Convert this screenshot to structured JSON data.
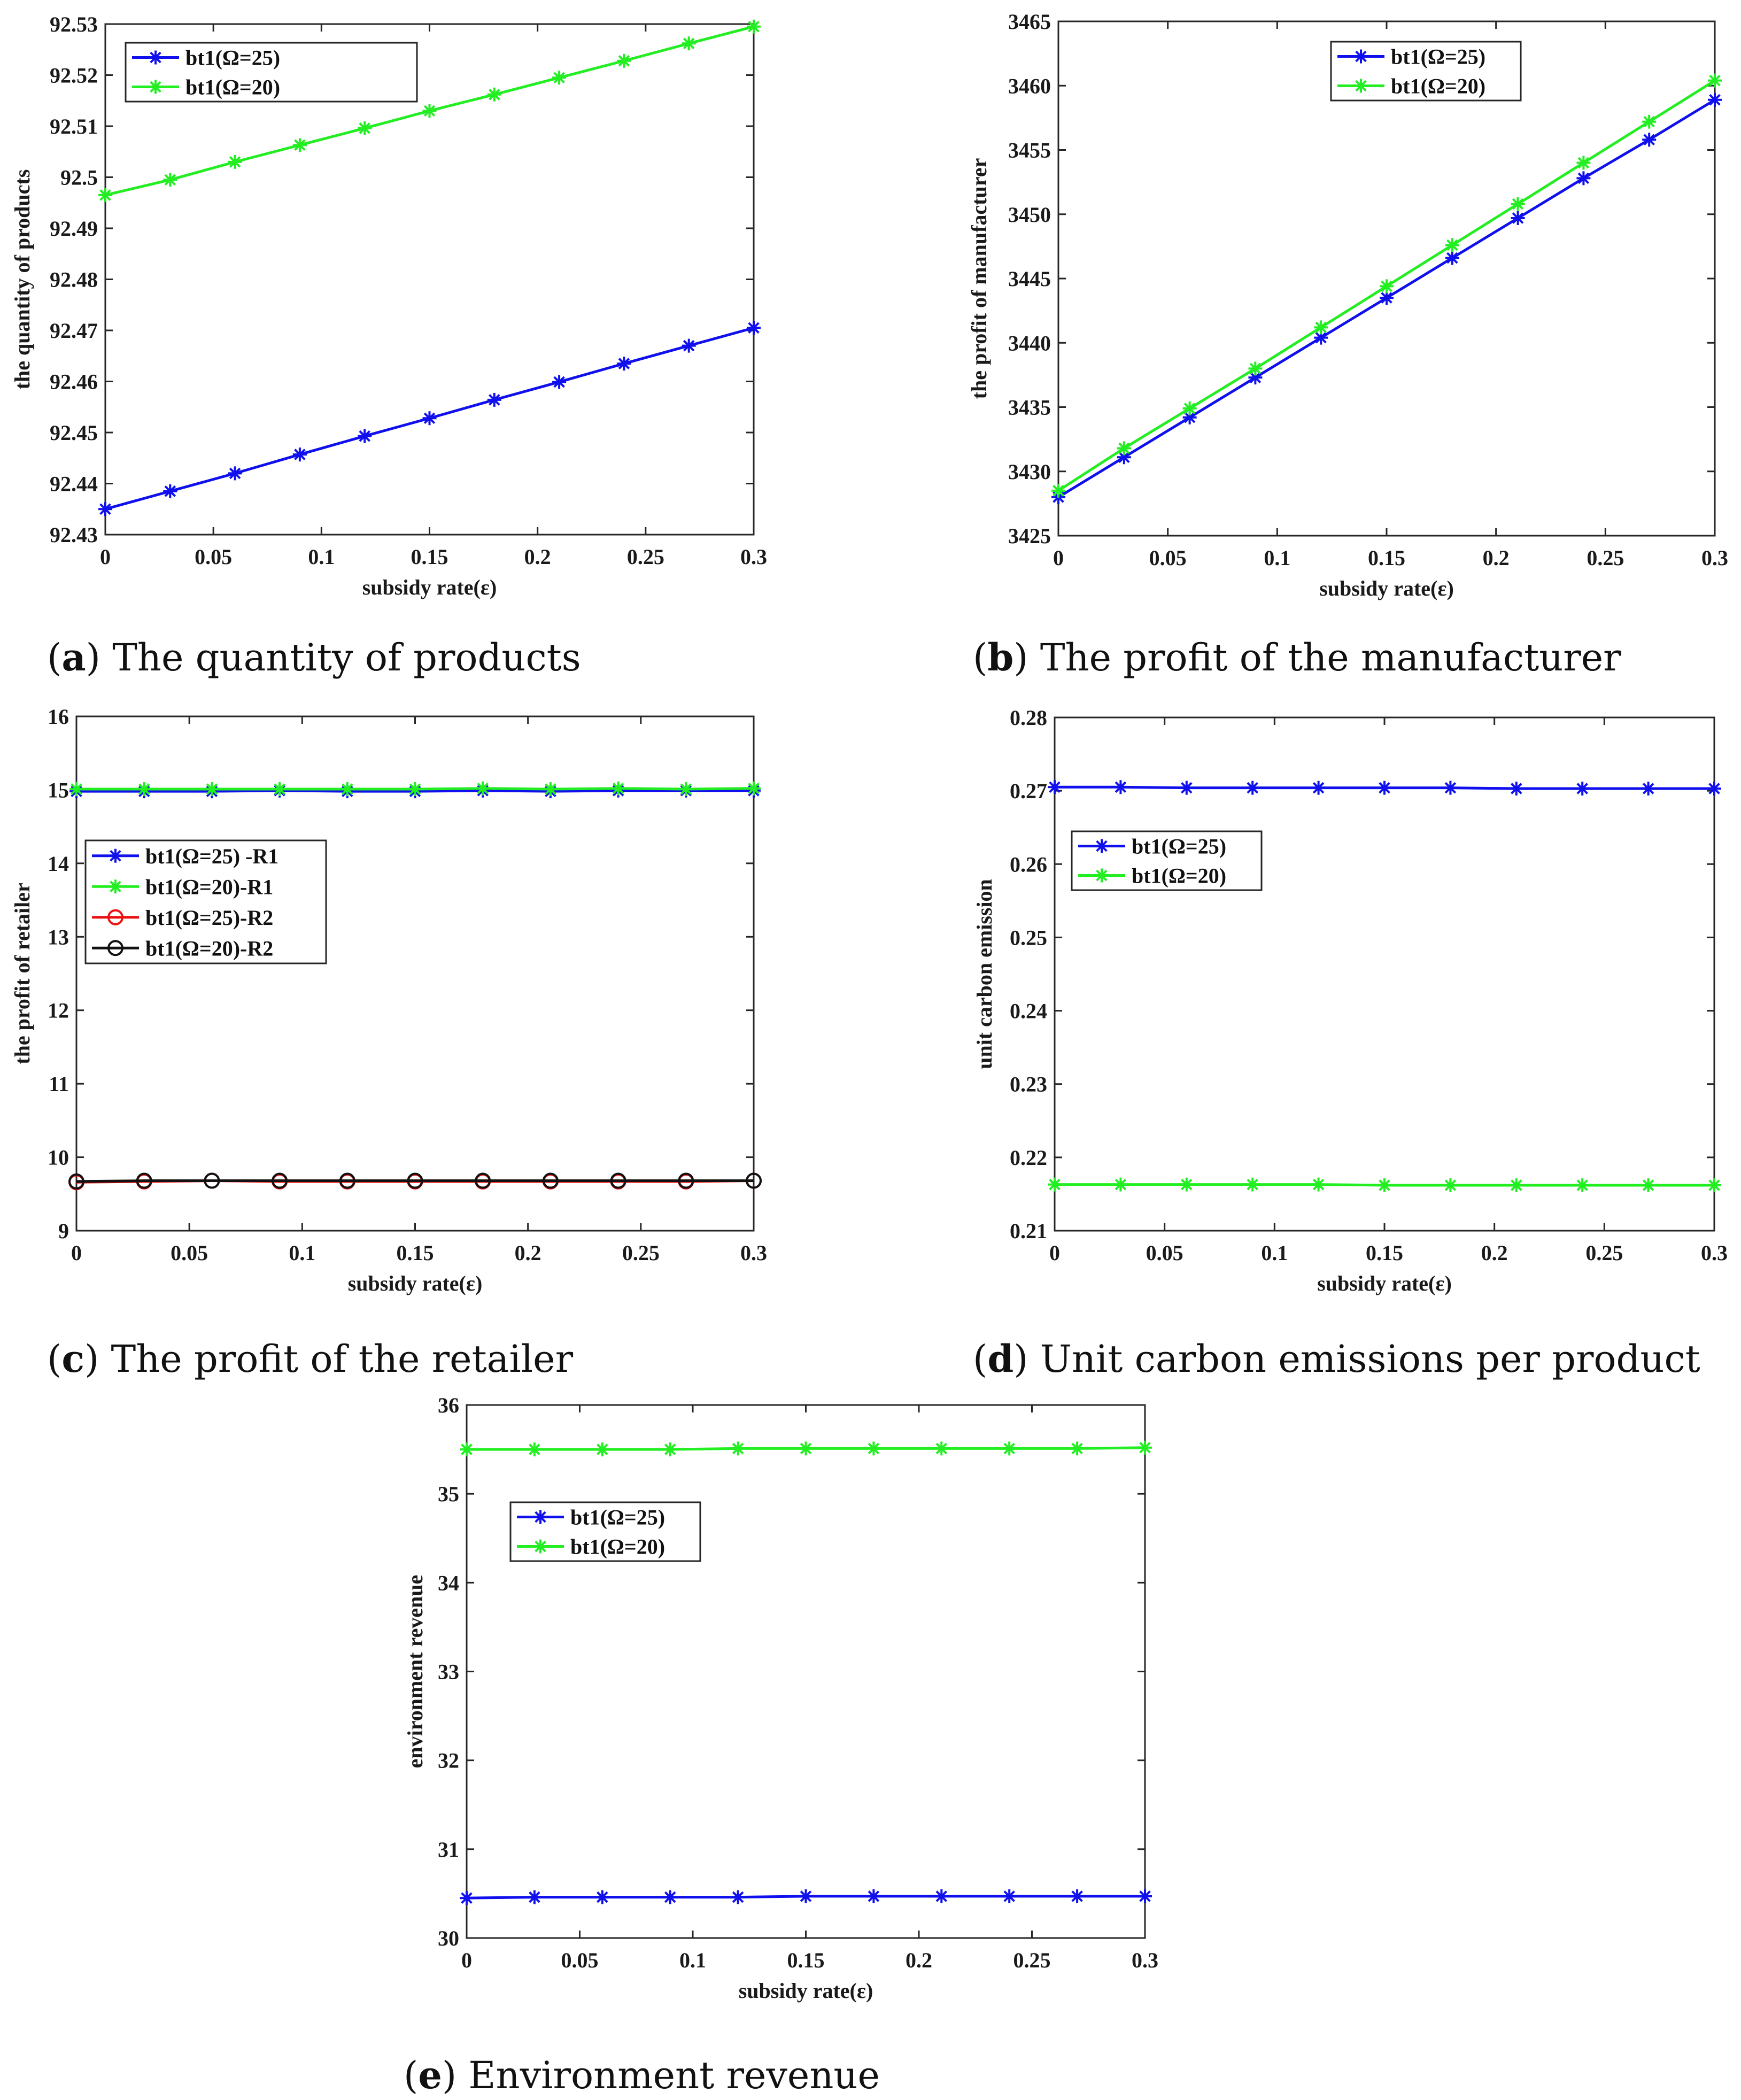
{
  "chart_data": [
    {
      "type": "line",
      "caption_letter": "a",
      "caption_text": "The quantity of products",
      "xlabel": "subsidy rate(ε)",
      "ylabel": "the quantity of products",
      "xlim": [
        0,
        0.3
      ],
      "ylim": [
        92.43,
        92.53
      ],
      "xticks": [
        "0",
        "0.05",
        "0.1",
        "0.15",
        "0.2",
        "0.25",
        "0.3"
      ],
      "yticks": [
        "92.43",
        "92.44",
        "92.45",
        "92.46",
        "92.47",
        "92.48",
        "92.49",
        "92.5",
        "92.51",
        "92.52",
        "92.53"
      ],
      "legend_position": "top-left",
      "x": [
        0,
        0.03,
        0.06,
        0.09,
        0.12,
        0.15,
        0.18,
        0.21,
        0.24,
        0.27,
        0.3
      ],
      "series": [
        {
          "name": "bt1(Ω=25)",
          "color": "#1010ee",
          "marker": "star",
          "values": [
            92.435,
            92.4385,
            92.442,
            92.4457,
            92.4493,
            92.4528,
            92.4564,
            92.4599,
            92.4635,
            92.467,
            92.4705
          ]
        },
        {
          "name": "bt1(Ω=20)",
          "color": "#22ee22",
          "marker": "star",
          "values": [
            92.4965,
            92.4995,
            92.503,
            92.5063,
            92.5096,
            92.513,
            92.5162,
            92.5195,
            92.5228,
            92.5262,
            92.5295
          ]
        }
      ]
    },
    {
      "type": "line",
      "caption_letter": "b",
      "caption_text": "The profit of the manufacturer",
      "xlabel": "subsidy rate(ε)",
      "ylabel": "the profit of manufacturer",
      "xlim": [
        0,
        0.3
      ],
      "ylim": [
        3425,
        3465
      ],
      "xticks": [
        "0",
        "0.05",
        "0.1",
        "0.15",
        "0.2",
        "0.25",
        "0.3"
      ],
      "yticks": [
        "3425",
        "3430",
        "3435",
        "3440",
        "3445",
        "3450",
        "3455",
        "3460",
        "3465"
      ],
      "legend_position": "top-center",
      "x": [
        0,
        0.03,
        0.06,
        0.09,
        0.12,
        0.15,
        0.18,
        0.21,
        0.24,
        0.27,
        0.3
      ],
      "series": [
        {
          "name": "bt1(Ω=25)",
          "color": "#1010ee",
          "marker": "star",
          "values": [
            3428.0,
            3431.1,
            3434.2,
            3437.3,
            3440.4,
            3443.5,
            3446.6,
            3449.7,
            3452.8,
            3455.8,
            3458.9
          ]
        },
        {
          "name": "bt1(Ω=20)",
          "color": "#22ee22",
          "marker": "star",
          "values": [
            3428.5,
            3431.8,
            3434.9,
            3438.0,
            3441.2,
            3444.4,
            3447.6,
            3450.8,
            3454.0,
            3457.2,
            3460.4
          ]
        }
      ]
    },
    {
      "type": "line",
      "caption_letter": "c",
      "caption_text": "The profit of the retailer",
      "xlabel": "subsidy rate(ε)",
      "ylabel": "the profit of retailer",
      "xlim": [
        0,
        0.3
      ],
      "ylim": [
        9,
        16
      ],
      "xticks": [
        "0",
        "0.05",
        "0.1",
        "0.15",
        "0.2",
        "0.25",
        "0.3"
      ],
      "yticks": [
        "9",
        "10",
        "11",
        "12",
        "13",
        "14",
        "15",
        "16"
      ],
      "legend_position": "middle-left",
      "x": [
        0,
        0.03,
        0.06,
        0.09,
        0.12,
        0.15,
        0.18,
        0.21,
        0.24,
        0.27,
        0.3
      ],
      "series": [
        {
          "name": "bt1(Ω=25) -R1",
          "color": "#1010ee",
          "marker": "star",
          "values": [
            14.98,
            14.98,
            14.98,
            14.99,
            14.98,
            14.98,
            14.99,
            14.98,
            14.99,
            14.99,
            14.99
          ]
        },
        {
          "name": "bt1(Ω=20)-R1",
          "color": "#22ee22",
          "marker": "star",
          "values": [
            15.01,
            15.01,
            15.01,
            15.01,
            15.01,
            15.01,
            15.02,
            15.01,
            15.02,
            15.01,
            15.02
          ]
        },
        {
          "name": "bt1(Ω=25)-R2",
          "color": "#ee1010",
          "marker": "circle",
          "values": [
            9.66,
            9.67,
            9.68,
            9.67,
            9.67,
            9.67,
            9.67,
            9.67,
            9.67,
            9.67,
            9.68
          ]
        },
        {
          "name": "bt1(Ω=20)-R2",
          "color": "#111111",
          "marker": "circle",
          "values": [
            9.67,
            9.68,
            9.68,
            9.68,
            9.68,
            9.68,
            9.68,
            9.68,
            9.68,
            9.68,
            9.68
          ]
        }
      ]
    },
    {
      "type": "line",
      "caption_letter": "d",
      "caption_text": "Unit carbon emissions per product",
      "xlabel": "subsidy rate(ε)",
      "ylabel": "unit carbon emission",
      "xlim": [
        0,
        0.3
      ],
      "ylim": [
        0.21,
        0.28
      ],
      "xticks": [
        "0",
        "0.05",
        "0.1",
        "0.15",
        "0.2",
        "0.25",
        "0.3"
      ],
      "yticks": [
        "0.21",
        "0.22",
        "0.23",
        "0.24",
        "0.25",
        "0.26",
        "0.27",
        "0.28"
      ],
      "legend_position": "upper-left",
      "x": [
        0,
        0.03,
        0.06,
        0.09,
        0.12,
        0.15,
        0.18,
        0.21,
        0.24,
        0.27,
        0.3
      ],
      "series": [
        {
          "name": "bt1(Ω=25)",
          "color": "#1010ee",
          "marker": "star",
          "values": [
            0.2705,
            0.2705,
            0.2704,
            0.2704,
            0.2704,
            0.2704,
            0.2704,
            0.2703,
            0.2703,
            0.2703,
            0.2703
          ]
        },
        {
          "name": "bt1(Ω=20)",
          "color": "#22ee22",
          "marker": "star",
          "values": [
            0.2163,
            0.2163,
            0.2163,
            0.2163,
            0.2163,
            0.2162,
            0.2162,
            0.2162,
            0.2162,
            0.2162,
            0.2162
          ]
        }
      ]
    },
    {
      "type": "line",
      "caption_letter": "e",
      "caption_text": "Environment revenue",
      "xlabel": "subsidy rate(ε)",
      "ylabel": "environment revenue",
      "xlim": [
        0,
        0.3
      ],
      "ylim": [
        30,
        36
      ],
      "xticks": [
        "0",
        "0.05",
        "0.1",
        "0.15",
        "0.2",
        "0.25",
        "0.3"
      ],
      "yticks": [
        "30",
        "31",
        "32",
        "33",
        "34",
        "35",
        "36"
      ],
      "legend_position": "upper-left",
      "x": [
        0,
        0.03,
        0.06,
        0.09,
        0.12,
        0.15,
        0.18,
        0.21,
        0.24,
        0.27,
        0.3
      ],
      "series": [
        {
          "name": "bt1(Ω=25)",
          "color": "#1010ee",
          "marker": "star",
          "values": [
            30.45,
            30.46,
            30.46,
            30.46,
            30.46,
            30.47,
            30.47,
            30.47,
            30.47,
            30.47,
            30.47
          ]
        },
        {
          "name": "bt1(Ω=20)",
          "color": "#22ee22",
          "marker": "star",
          "values": [
            35.5,
            35.5,
            35.5,
            35.5,
            35.51,
            35.51,
            35.51,
            35.51,
            35.51,
            35.51,
            35.52
          ]
        }
      ]
    }
  ]
}
